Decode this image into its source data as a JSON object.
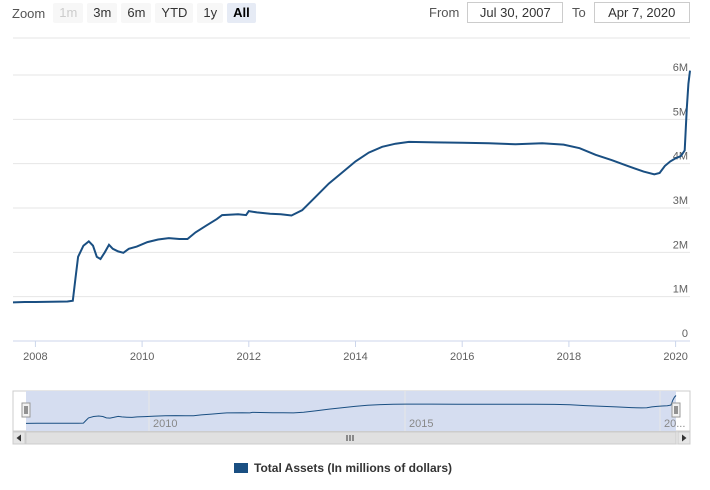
{
  "toolbar": {
    "zoom_label": "Zoom",
    "buttons": [
      "1m",
      "3m",
      "6m",
      "YTD",
      "1y",
      "All"
    ],
    "from_label": "From",
    "from_value": "Jul 30, 2007",
    "to_label": "To",
    "to_value": "Apr 7, 2020"
  },
  "colors": {
    "line": "#1a4f82",
    "navigator_fill": "#d5ddf0",
    "grid": "#e6e6e6"
  },
  "navigator": {
    "labels": [
      "2010",
      "2015",
      "20..."
    ],
    "scroll_left_icon": "triangle-left",
    "scroll_right_icon": "triangle-right",
    "grip_icon": "grip-lines"
  },
  "chart_data": {
    "type": "line",
    "title": "",
    "xlabel": "",
    "ylabel": "",
    "xlim": [
      2007.58,
      2020.27
    ],
    "ylim": [
      0,
      6000000
    ],
    "x_ticks": [
      "2008",
      "2010",
      "2012",
      "2014",
      "2016",
      "2018",
      "2020"
    ],
    "y_ticks": [
      "0",
      "1M",
      "2M",
      "3M",
      "4M",
      "5M",
      "6M"
    ],
    "legend_position": "bottom-center",
    "series": [
      {
        "name": "Total Assets (In millions of dollars)",
        "points": [
          [
            2007.58,
            870000
          ],
          [
            2007.8,
            880000
          ],
          [
            2008.0,
            880000
          ],
          [
            2008.3,
            885000
          ],
          [
            2008.6,
            890000
          ],
          [
            2008.7,
            910000
          ],
          [
            2008.75,
            1400000
          ],
          [
            2008.8,
            1900000
          ],
          [
            2008.9,
            2150000
          ],
          [
            2009.0,
            2250000
          ],
          [
            2009.08,
            2150000
          ],
          [
            2009.15,
            1900000
          ],
          [
            2009.22,
            1850000
          ],
          [
            2009.3,
            2000000
          ],
          [
            2009.38,
            2170000
          ],
          [
            2009.45,
            2080000
          ],
          [
            2009.55,
            2020000
          ],
          [
            2009.65,
            1990000
          ],
          [
            2009.75,
            2080000
          ],
          [
            2009.9,
            2130000
          ],
          [
            2010.1,
            2230000
          ],
          [
            2010.3,
            2290000
          ],
          [
            2010.5,
            2320000
          ],
          [
            2010.7,
            2300000
          ],
          [
            2010.85,
            2300000
          ],
          [
            2011.0,
            2450000
          ],
          [
            2011.2,
            2600000
          ],
          [
            2011.4,
            2750000
          ],
          [
            2011.5,
            2840000
          ],
          [
            2011.8,
            2860000
          ],
          [
            2011.95,
            2840000
          ],
          [
            2012.0,
            2930000
          ],
          [
            2012.15,
            2900000
          ],
          [
            2012.4,
            2870000
          ],
          [
            2012.6,
            2860000
          ],
          [
            2012.8,
            2830000
          ],
          [
            2013.0,
            2950000
          ],
          [
            2013.25,
            3250000
          ],
          [
            2013.5,
            3550000
          ],
          [
            2013.75,
            3800000
          ],
          [
            2014.0,
            4050000
          ],
          [
            2014.25,
            4250000
          ],
          [
            2014.5,
            4380000
          ],
          [
            2014.75,
            4450000
          ],
          [
            2015.0,
            4490000
          ],
          [
            2015.5,
            4480000
          ],
          [
            2016.0,
            4470000
          ],
          [
            2016.5,
            4460000
          ],
          [
            2017.0,
            4440000
          ],
          [
            2017.5,
            4460000
          ],
          [
            2017.9,
            4430000
          ],
          [
            2018.2,
            4350000
          ],
          [
            2018.5,
            4200000
          ],
          [
            2018.8,
            4080000
          ],
          [
            2019.1,
            3950000
          ],
          [
            2019.4,
            3820000
          ],
          [
            2019.6,
            3760000
          ],
          [
            2019.7,
            3790000
          ],
          [
            2019.8,
            3950000
          ],
          [
            2019.9,
            4050000
          ],
          [
            2020.0,
            4120000
          ],
          [
            2020.1,
            4170000
          ],
          [
            2020.17,
            4300000
          ],
          [
            2020.21,
            5250000
          ],
          [
            2020.24,
            5800000
          ],
          [
            2020.27,
            6100000
          ]
        ]
      }
    ]
  }
}
